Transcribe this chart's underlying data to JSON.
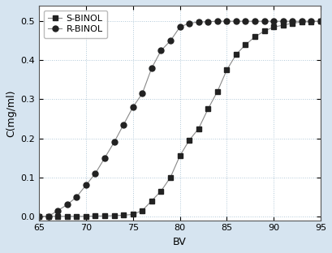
{
  "title": "",
  "xlabel": "BV",
  "ylabel": "C(mg/ml)",
  "xlim": [
    65,
    95
  ],
  "ylim": [
    -0.01,
    0.54
  ],
  "background_color": "#d6e4f0",
  "plot_bg_color": "#ffffff",
  "s_binol_x": [
    65,
    66,
    67,
    68,
    69,
    70,
    71,
    72,
    73,
    74,
    75,
    76,
    77,
    78,
    79,
    80,
    81,
    82,
    83,
    84,
    85,
    86,
    87,
    88,
    89,
    90,
    91,
    92,
    93,
    94,
    95
  ],
  "s_binol_y": [
    0.0,
    0.0,
    0.0,
    0.0,
    0.0,
    0.0,
    0.001,
    0.001,
    0.002,
    0.003,
    0.005,
    0.015,
    0.04,
    0.065,
    0.1,
    0.155,
    0.195,
    0.225,
    0.275,
    0.32,
    0.375,
    0.415,
    0.44,
    0.46,
    0.475,
    0.485,
    0.49,
    0.495,
    0.498,
    0.499,
    0.5
  ],
  "r_binol_x": [
    65,
    66,
    67,
    68,
    69,
    70,
    71,
    72,
    73,
    74,
    75,
    76,
    77,
    78,
    79,
    80,
    81,
    82,
    83,
    84,
    85,
    86,
    87,
    88,
    89,
    90,
    91,
    92,
    93,
    94,
    95
  ],
  "r_binol_y": [
    0.0,
    0.0,
    0.015,
    0.03,
    0.05,
    0.08,
    0.11,
    0.15,
    0.19,
    0.235,
    0.28,
    0.315,
    0.38,
    0.425,
    0.45,
    0.485,
    0.495,
    0.498,
    0.499,
    0.5,
    0.5,
    0.5,
    0.5,
    0.5,
    0.5,
    0.5,
    0.5,
    0.5,
    0.5,
    0.5,
    0.5
  ],
  "line_color": "#888888",
  "marker_color": "#222222",
  "s_marker": "s",
  "r_marker": "o",
  "marker_size": 5,
  "legend_labels": [
    "S-BINOL",
    "R-BINOL"
  ],
  "xticks": [
    65,
    70,
    75,
    80,
    85,
    90,
    95
  ],
  "yticks": [
    0.0,
    0.1,
    0.2,
    0.3,
    0.4,
    0.5
  ],
  "grid": true,
  "grid_color": "#b0c8d8",
  "grid_linestyle": ":"
}
